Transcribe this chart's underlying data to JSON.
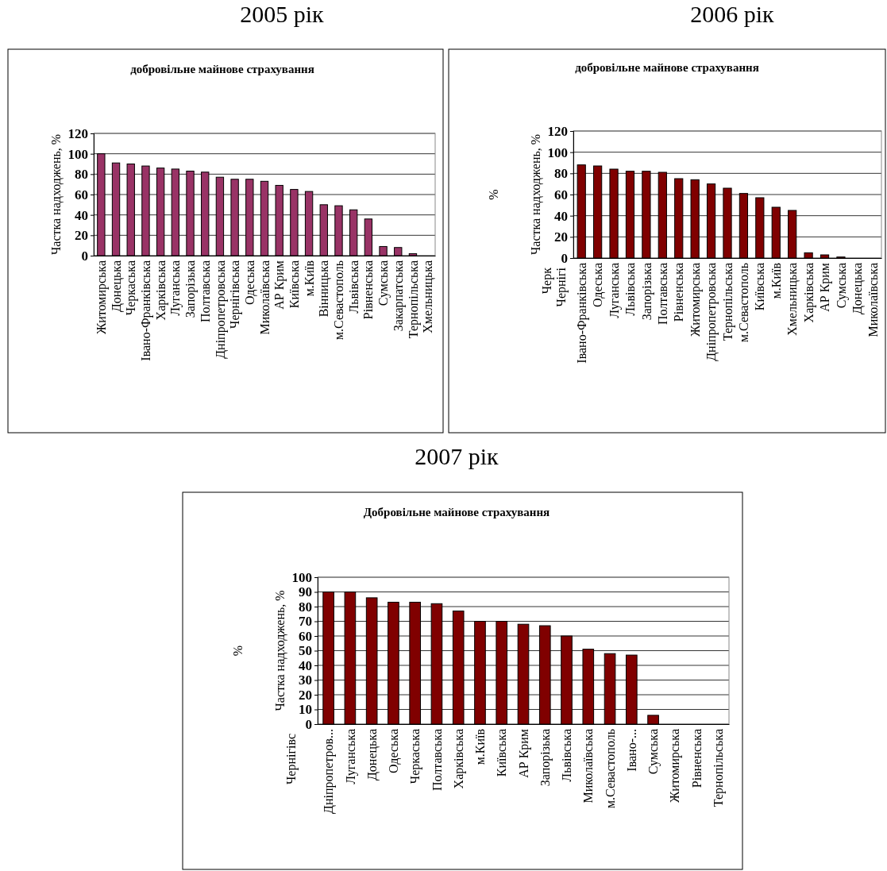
{
  "chart_data": [
    {
      "type": "bar",
      "title": "2005 рік",
      "subtitle": "добровільне майнове страхування",
      "ylabel": "Частка надходжень, %",
      "color": "#993366",
      "grid": "y",
      "ylim": [
        0,
        120
      ],
      "yticks": [
        0,
        20,
        40,
        60,
        80,
        100,
        120
      ],
      "categories": [
        "Житомирська",
        "Донецька",
        "Черкаська",
        "Івано-Франківська",
        "Харківська",
        "Луганська",
        "Запорізька",
        "Полтавська",
        "Дніпропетровська",
        "Чернігівська",
        "Одеська",
        "Миколаївська",
        "АР Крим",
        "Київська",
        "м.Київ",
        "Вінницька",
        "м.Севастополь",
        "Львівська",
        "Рівненська",
        "Сумська",
        "Закарпатська",
        "Тернопільська",
        "Хмельницька"
      ],
      "values": [
        100,
        91,
        90,
        88,
        86,
        85,
        83,
        82,
        77,
        75,
        75,
        73,
        69,
        65,
        63,
        50,
        49,
        45,
        36,
        9,
        8,
        2,
        0
      ]
    },
    {
      "type": "bar",
      "title": "2006 рік",
      "subtitle": "добровільне майнове страхування",
      "ylabel": "Частка надходжень, %",
      "color": "#800000",
      "grid": "y",
      "ylim": [
        0,
        120
      ],
      "yticks": [
        0,
        20,
        40,
        60,
        80,
        100,
        120
      ],
      "categories": [
        "Івано-Франківська",
        "Одеська",
        "Луганська",
        "Львівська",
        "Запорізька",
        "Полтавська",
        "Рівненська",
        "Житомирська",
        "Дніпропетровська",
        "Тернопільська",
        "м.Севастополь",
        "Київська",
        "м.Київ",
        "Хмельницька",
        "Харківська",
        "АР Крим",
        "Сумська",
        "Донецька",
        "Миколаївська"
      ],
      "values": [
        88,
        87,
        84,
        82,
        82,
        81,
        75,
        74,
        70,
        66,
        61,
        57,
        48,
        45,
        5,
        3,
        1,
        0,
        0
      ],
      "annotations": [
        "%",
        "Черк",
        "Чернігі"
      ]
    },
    {
      "type": "bar",
      "title": "2007 рік",
      "subtitle": "Добровільне майнове страхування",
      "ylabel": "Частка надходжень, %",
      "color": "#800000",
      "grid": "y",
      "ylim": [
        0,
        100
      ],
      "yticks": [
        0,
        10,
        20,
        30,
        40,
        50,
        60,
        70,
        80,
        90,
        100
      ],
      "categories": [
        "Дніпропетров...",
        "Луганська",
        "Донецька",
        "Одеська",
        "Черкаська",
        "Полтавська",
        "Харківська",
        "м.Київ",
        "Київська",
        "АР Крим",
        "Запорізька",
        "Львівська",
        "Миколаївська",
        "м.Севастополь",
        "Івано-...",
        "Сумська",
        "Житомирська",
        "Рівненська",
        "Тернопільська"
      ],
      "values": [
        90,
        90,
        86,
        83,
        83,
        82,
        77,
        70,
        70,
        68,
        67,
        60,
        51,
        48,
        47,
        6,
        0,
        0,
        0
      ],
      "annotations": [
        "%",
        "Чернігівс"
      ]
    }
  ]
}
